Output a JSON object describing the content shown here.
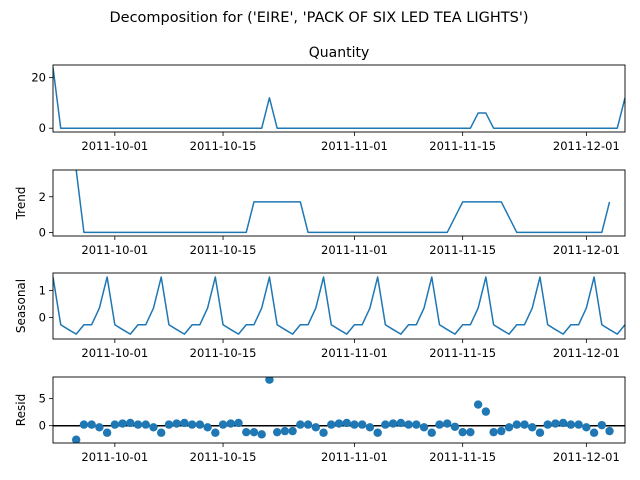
{
  "figure": {
    "suptitle": "Decomposition for ('EIRE', 'PACK OF SIX LED TEA LIGHTS')"
  },
  "chart_data": [
    {
      "type": "line",
      "title": "Quantity",
      "ylabel": "",
      "x_start": "2011-09-23",
      "x_end": "2011-12-06",
      "xticks": [
        "2011-10-01",
        "2011-10-15",
        "2011-11-01",
        "2011-11-15",
        "2011-12-01"
      ],
      "ylim": [
        -1.5,
        25
      ],
      "yticks": [
        0,
        20
      ],
      "series": [
        {
          "color": "#1f77b4",
          "points": [
            [
              "2011-09-23",
              24
            ],
            [
              "2011-09-24",
              0
            ],
            [
              "2011-10-20",
              0
            ],
            [
              "2011-10-21",
              12
            ],
            [
              "2011-10-22",
              0
            ],
            [
              "2011-11-16",
              0
            ],
            [
              "2011-11-17",
              6
            ],
            [
              "2011-11-18",
              6
            ],
            [
              "2011-11-19",
              0
            ],
            [
              "2011-12-05",
              0
            ],
            [
              "2011-12-06",
              12
            ]
          ]
        }
      ]
    },
    {
      "type": "line",
      "title": "",
      "ylabel": "Trend",
      "x_start": "2011-09-23",
      "x_end": "2011-12-06",
      "xticks": [
        "2011-10-01",
        "2011-10-15",
        "2011-11-01",
        "2011-11-15",
        "2011-12-01"
      ],
      "ylim": [
        -0.2,
        3.5
      ],
      "yticks": [
        0,
        2
      ],
      "series": [
        {
          "color": "#1f77b4",
          "points": [
            [
              "2011-09-26",
              3.5
            ],
            [
              "2011-09-27",
              0
            ],
            [
              "2011-10-18",
              0
            ],
            [
              "2011-10-19",
              1.71
            ],
            [
              "2011-10-25",
              1.71
            ],
            [
              "2011-10-26",
              0
            ],
            [
              "2011-11-13",
              0
            ],
            [
              "2011-11-15",
              1.71
            ],
            [
              "2011-11-20",
              1.71
            ],
            [
              "2011-11-22",
              0
            ],
            [
              "2011-12-03",
              0
            ],
            [
              "2011-12-04",
              1.71
            ]
          ]
        }
      ]
    },
    {
      "type": "line",
      "title": "",
      "ylabel": "Seasonal",
      "x_start": "2011-09-23",
      "x_end": "2011-12-06",
      "xticks": [
        "2011-10-01",
        "2011-10-15",
        "2011-11-01",
        "2011-11-15",
        "2011-12-01"
      ],
      "ylim": [
        -0.8,
        1.65
      ],
      "yticks": [
        0,
        1
      ],
      "pattern": [
        1.5,
        -0.27,
        -0.45,
        -0.62,
        -0.27,
        -0.27,
        0.35
      ],
      "pattern_start": "2011-09-23",
      "series": [
        {
          "color": "#1f77b4"
        }
      ]
    },
    {
      "type": "scatter",
      "title": "",
      "ylabel": "Resid",
      "x_start": "2011-09-23",
      "x_end": "2011-12-06",
      "xticks": [
        "2011-10-01",
        "2011-10-15",
        "2011-11-01",
        "2011-11-15",
        "2011-12-01"
      ],
      "ylim": [
        -3.2,
        9
      ],
      "yticks": [
        0,
        5
      ],
      "zero_line": true,
      "series": [
        {
          "color": "#1f77b4",
          "points": [
            [
              "2011-09-26",
              -2.6
            ],
            [
              "2011-09-27",
              0.2
            ],
            [
              "2011-09-28",
              0.2
            ],
            [
              "2011-09-29",
              -0.3
            ],
            [
              "2011-09-30",
              -1.3
            ],
            [
              "2011-10-01",
              0.2
            ],
            [
              "2011-10-02",
              0.4
            ],
            [
              "2011-10-03",
              0.5
            ],
            [
              "2011-10-04",
              0.2
            ],
            [
              "2011-10-05",
              0.2
            ],
            [
              "2011-10-06",
              -0.3
            ],
            [
              "2011-10-07",
              -1.3
            ],
            [
              "2011-10-08",
              0.2
            ],
            [
              "2011-10-09",
              0.4
            ],
            [
              "2011-10-10",
              0.5
            ],
            [
              "2011-10-11",
              0.2
            ],
            [
              "2011-10-12",
              0.2
            ],
            [
              "2011-10-13",
              -0.3
            ],
            [
              "2011-10-14",
              -1.3
            ],
            [
              "2011-10-15",
              0.2
            ],
            [
              "2011-10-16",
              0.4
            ],
            [
              "2011-10-17",
              0.5
            ],
            [
              "2011-10-18",
              -1.2
            ],
            [
              "2011-10-19",
              -1.2
            ],
            [
              "2011-10-20",
              -1.6
            ],
            [
              "2011-10-21",
              8.5
            ],
            [
              "2011-10-22",
              -1.2
            ],
            [
              "2011-10-23",
              -1.0
            ],
            [
              "2011-10-24",
              -1.0
            ],
            [
              "2011-10-25",
              0.2
            ],
            [
              "2011-10-26",
              0.2
            ],
            [
              "2011-10-27",
              -0.3
            ],
            [
              "2011-10-28",
              -1.3
            ],
            [
              "2011-10-29",
              0.2
            ],
            [
              "2011-10-30",
              0.4
            ],
            [
              "2011-10-31",
              0.5
            ],
            [
              "2011-11-01",
              0.2
            ],
            [
              "2011-11-02",
              0.2
            ],
            [
              "2011-11-03",
              -0.3
            ],
            [
              "2011-11-04",
              -1.3
            ],
            [
              "2011-11-05",
              0.2
            ],
            [
              "2011-11-06",
              0.4
            ],
            [
              "2011-11-07",
              0.5
            ],
            [
              "2011-11-08",
              0.2
            ],
            [
              "2011-11-09",
              0.2
            ],
            [
              "2011-11-10",
              -0.3
            ],
            [
              "2011-11-11",
              -1.3
            ],
            [
              "2011-11-12",
              0.2
            ],
            [
              "2011-11-13",
              0.4
            ],
            [
              "2011-11-14",
              -0.2
            ],
            [
              "2011-11-15",
              -1.2
            ],
            [
              "2011-11-16",
              -1.2
            ],
            [
              "2011-11-17",
              3.9
            ],
            [
              "2011-11-18",
              2.6
            ],
            [
              "2011-11-19",
              -1.2
            ],
            [
              "2011-11-20",
              -1.0
            ],
            [
              "2011-11-21",
              -0.3
            ],
            [
              "2011-11-22",
              0.2
            ],
            [
              "2011-11-23",
              0.2
            ],
            [
              "2011-11-24",
              -0.3
            ],
            [
              "2011-11-25",
              -1.3
            ],
            [
              "2011-11-26",
              0.2
            ],
            [
              "2011-11-27",
              0.4
            ],
            [
              "2011-11-28",
              0.5
            ],
            [
              "2011-11-29",
              0.2
            ],
            [
              "2011-11-30",
              0.2
            ],
            [
              "2011-12-01",
              -0.3
            ],
            [
              "2011-12-02",
              -1.3
            ],
            [
              "2011-12-03",
              0.1
            ],
            [
              "2011-12-04",
              -1.0
            ]
          ]
        }
      ]
    }
  ]
}
